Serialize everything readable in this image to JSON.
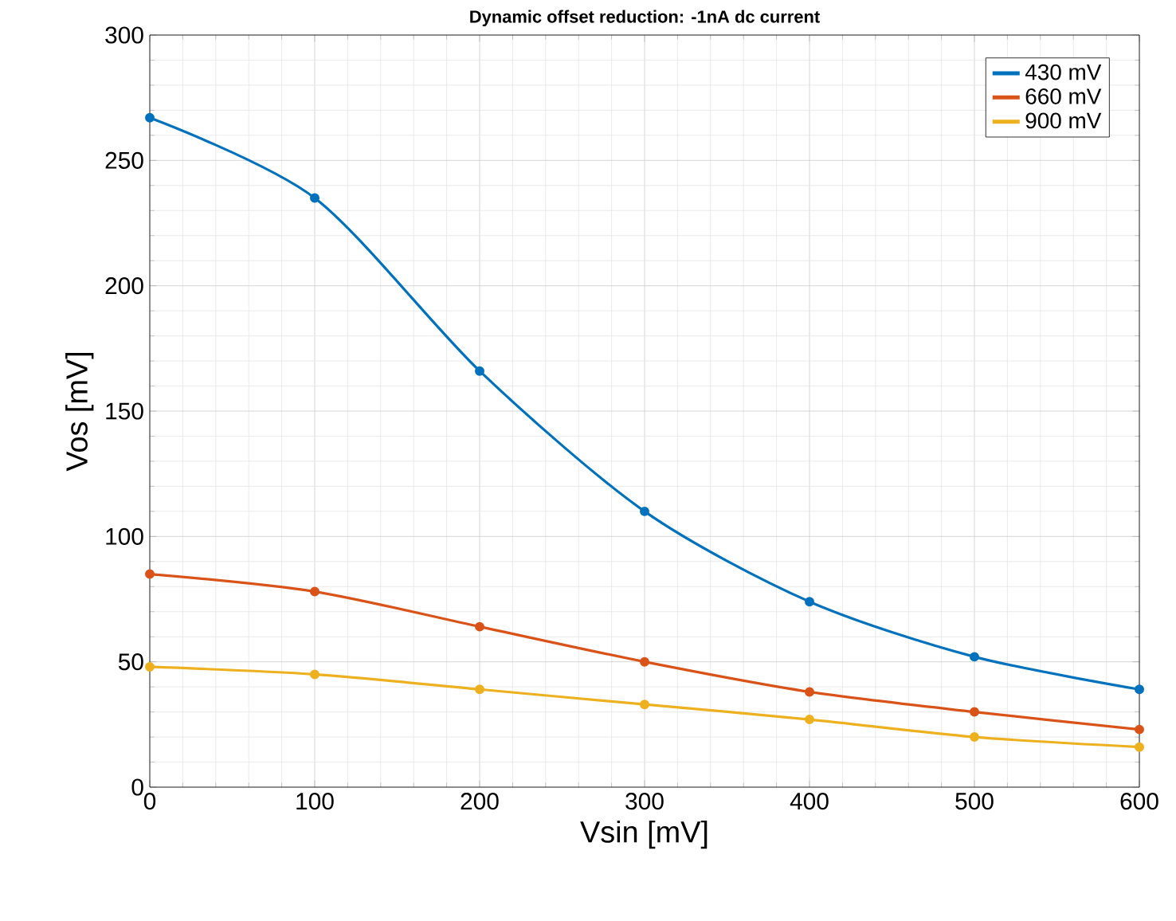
{
  "chart_data": {
    "type": "line",
    "title": "Dynamic offset reduction: -1nA dc current",
    "xlabel": "Vsin [mV]",
    "ylabel": "Vos [mV]",
    "x": [
      0,
      100,
      200,
      300,
      400,
      500,
      600
    ],
    "series": [
      {
        "name": "430 mV",
        "color": "#0072bd",
        "values": [
          267,
          235,
          166,
          110,
          74,
          52,
          39
        ]
      },
      {
        "name": "660 mV",
        "color": "#d95319",
        "values": [
          85,
          78,
          64,
          50,
          38,
          30,
          23
        ]
      },
      {
        "name": "900 mV",
        "color": "#edb120",
        "values": [
          48,
          45,
          39,
          33,
          27,
          20,
          16
        ]
      }
    ],
    "xlim": [
      0,
      600
    ],
    "ylim": [
      0,
      300
    ],
    "xticks": [
      0,
      100,
      200,
      300,
      400,
      500,
      600
    ],
    "yticks": [
      0,
      50,
      100,
      150,
      200,
      250,
      300
    ],
    "grid": true,
    "legend": "top right",
    "marker": "circle",
    "line_style": "solid"
  }
}
